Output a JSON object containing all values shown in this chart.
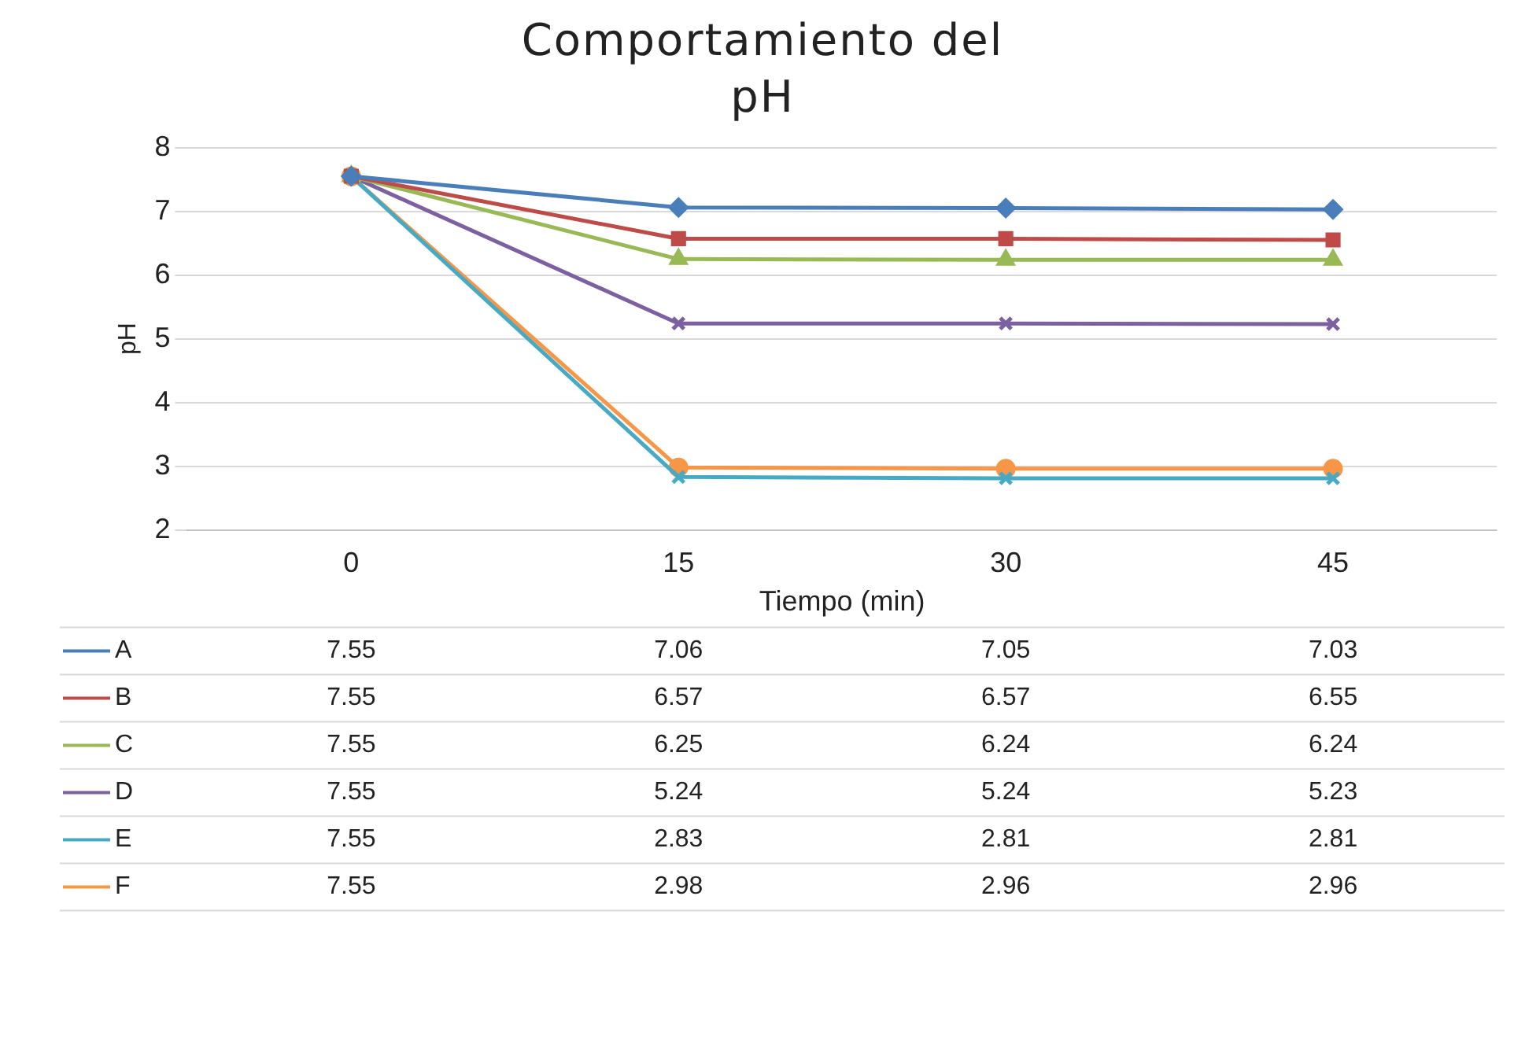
{
  "chart_data": {
    "type": "line",
    "title": "Comportamiento del pH",
    "xlabel": "Tiempo (min)",
    "ylabel": "pH",
    "categories": [
      "0",
      "15",
      "30",
      "45"
    ],
    "ylim": [
      2,
      8
    ],
    "yticks": [
      2,
      3,
      4,
      5,
      6,
      7,
      8
    ],
    "grid": "y",
    "legend": "bottom",
    "data_labels": true,
    "line_style": "solid",
    "series": [
      {
        "name": "A",
        "color": "#4a7ebb",
        "marker": "diamond",
        "values": [
          7.55,
          7.06,
          7.05,
          7.03
        ]
      },
      {
        "name": "B",
        "color": "#be4b48",
        "marker": "square",
        "values": [
          7.55,
          6.57,
          6.57,
          6.55
        ]
      },
      {
        "name": "C",
        "color": "#98b954",
        "marker": "triangle",
        "values": [
          7.55,
          6.25,
          6.24,
          6.24
        ]
      },
      {
        "name": "D",
        "color": "#7d60a0",
        "marker": "cross",
        "values": [
          7.55,
          5.24,
          5.24,
          5.23
        ]
      },
      {
        "name": "E",
        "color": "#46aac5",
        "marker": "cross",
        "values": [
          7.55,
          2.83,
          2.81,
          2.81
        ]
      },
      {
        "name": "F",
        "color": "#f79646",
        "marker": "circle",
        "values": [
          7.55,
          2.98,
          2.96,
          2.96
        ]
      }
    ]
  }
}
